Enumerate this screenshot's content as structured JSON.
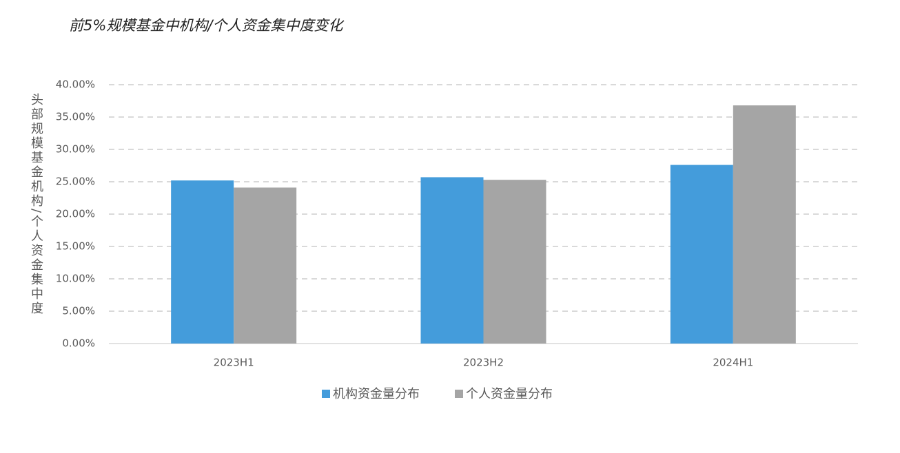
{
  "chart_data": {
    "type": "bar",
    "title": "前5%规模基金中机构/个人资金集中度变化",
    "y_label": "头部规模基金机构/个人资金集中度",
    "categories": [
      "2023H1",
      "2023H2",
      "2024H1"
    ],
    "series": [
      {
        "name": "机构资金量分布",
        "color": "#449cdb",
        "values": [
          25.2,
          25.7,
          27.6
        ]
      },
      {
        "name": "个人资金量分布",
        "color": "#a5a5a5",
        "values": [
          24.1,
          25.3,
          36.8
        ]
      }
    ],
    "ylim": [
      0,
      40
    ],
    "yticks": [
      {
        "value": 0,
        "label": "0.00%"
      },
      {
        "value": 5,
        "label": "5.00%"
      },
      {
        "value": 10,
        "label": "10.00%"
      },
      {
        "value": 15,
        "label": "15.00%"
      },
      {
        "value": 20,
        "label": "20.00%"
      },
      {
        "value": 25,
        "label": "25.00%"
      },
      {
        "value": 30,
        "label": "30.00%"
      },
      {
        "value": 35,
        "label": "35.00%"
      },
      {
        "value": 40,
        "label": "40.00%"
      }
    ],
    "grid": true
  }
}
